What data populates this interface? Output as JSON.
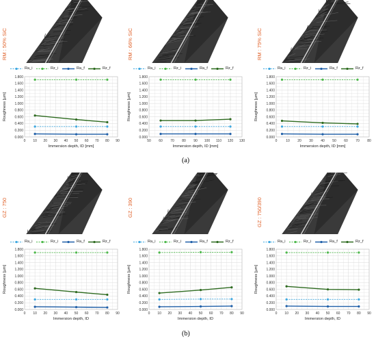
{
  "captions": {
    "a": "(a)",
    "b": "(b)"
  },
  "colors": {
    "ra": "#1f5fa8",
    "ra_i": "#3ea8e0",
    "rz": "#2d6a1f",
    "rz_i": "#4cb84a",
    "label": "#e0622a",
    "grid": "#d9d9d9"
  },
  "panels": [
    {
      "label": "RM : 50% SiC",
      "legend": [
        "Ra_i",
        "Rz_i",
        "Ra_f",
        "Rz_f"
      ],
      "chart_data": {
        "type": "line",
        "ylabel": "Roughness [µm]",
        "xlabel": "Immersion depth, ID [mm]",
        "xlim": [
          0,
          90
        ],
        "xticks": [
          0,
          10,
          20,
          30,
          40,
          50,
          60,
          70,
          80,
          90
        ],
        "ylim": [
          0,
          1.8
        ],
        "yticks": [
          "0.000",
          "0.200",
          "0.400",
          "0.600",
          "0.800",
          "1.000",
          "1.200",
          "1.400",
          "1.600",
          "1.800"
        ],
        "x": [
          10,
          50,
          80
        ],
        "series": [
          {
            "name": "Ra_i",
            "values": [
              0.31,
              0.31,
              0.31
            ]
          },
          {
            "name": "Rz_i",
            "values": [
              1.71,
              1.71,
              1.71
            ]
          },
          {
            "name": "Ra_f",
            "values": [
              0.09,
              0.08,
              0.08
            ]
          },
          {
            "name": "Rz_f",
            "values": [
              0.64,
              0.52,
              0.44
            ]
          }
        ]
      }
    },
    {
      "label": "RM : 66% SiC",
      "legend": [
        "Ra_i",
        "Rz_i",
        "Ra_f",
        "Rz_f"
      ],
      "chart_data": {
        "type": "line",
        "ylabel": "Roughness [µm]",
        "xlabel": "Immersion depth, ID [mm]",
        "xlim": [
          50,
          130
        ],
        "xticks": [
          50,
          60,
          70,
          80,
          90,
          100,
          110,
          120,
          130
        ],
        "ylim": [
          0,
          1.8
        ],
        "yticks": [
          "0.000",
          "0.200",
          "0.400",
          "0.600",
          "0.800",
          "1.000",
          "1.200",
          "1.400",
          "1.600",
          "1.800"
        ],
        "x": [
          60,
          90,
          120
        ],
        "series": [
          {
            "name": "Ra_i",
            "values": [
              0.31,
              0.31,
              0.31
            ]
          },
          {
            "name": "Rz_i",
            "values": [
              1.71,
              1.71,
              1.71
            ]
          },
          {
            "name": "Ra_f",
            "values": [
              0.09,
              0.09,
              0.09
            ]
          },
          {
            "name": "Rz_f",
            "values": [
              0.49,
              0.49,
              0.53
            ]
          }
        ]
      }
    },
    {
      "label": "RM : 75% SiC",
      "legend": [
        "Ra_i",
        "Rz_i",
        "Ra_f",
        "Rz_f"
      ],
      "chart_data": {
        "type": "line",
        "ylabel": "Roughness [µm]",
        "xlabel": "Immersion depth, ID [mm]",
        "xlim": [
          0,
          80
        ],
        "xticks": [
          0,
          10,
          20,
          30,
          40,
          50,
          60,
          70,
          80
        ],
        "ylim": [
          0,
          1.8
        ],
        "yticks": [
          "0.000",
          "0.200",
          "0.400",
          "0.600",
          "0.800",
          "1.000",
          "1.200",
          "1.400",
          "1.600",
          "1.800"
        ],
        "x": [
          5,
          40,
          70
        ],
        "series": [
          {
            "name": "Ra_i",
            "values": [
              0.31,
              0.31,
              0.31
            ]
          },
          {
            "name": "Rz_i",
            "values": [
              1.71,
              1.71,
              1.71
            ]
          },
          {
            "name": "Ra_f",
            "values": [
              0.09,
              0.08,
              0.08
            ]
          },
          {
            "name": "Rz_f",
            "values": [
              0.48,
              0.42,
              0.39
            ]
          }
        ]
      }
    },
    {
      "label": "GZ : 750",
      "legend": [
        "Ra_i",
        "Rz_i",
        "Ra_f",
        "Rz_f"
      ],
      "chart_data": {
        "type": "line",
        "ylabel": "Roughness [µm]",
        "xlabel": "Immersion depth, ID",
        "xlim": [
          0,
          90
        ],
        "xticks": [
          0,
          10,
          20,
          30,
          40,
          50,
          60,
          70,
          80,
          90
        ],
        "ylim": [
          0,
          1.8
        ],
        "yticks": [
          "0.000",
          "0.200",
          "0.400",
          "0.600",
          "0.800",
          "1.000",
          "1.200",
          "1.400",
          "1.600",
          "1.800"
        ],
        "x": [
          10,
          50,
          80
        ],
        "series": [
          {
            "name": "Ra_i",
            "values": [
              0.3,
              0.3,
              0.3
            ]
          },
          {
            "name": "Rz_i",
            "values": [
              1.7,
              1.7,
              1.7
            ]
          },
          {
            "name": "Ra_f",
            "values": [
              0.08,
              0.07,
              0.06
            ]
          },
          {
            "name": "Rz_f",
            "values": [
              0.63,
              0.52,
              0.44
            ]
          }
        ]
      }
    },
    {
      "label": "GZ : 390",
      "legend": [
        "Ra_i",
        "Rz_i",
        "Ra_f",
        "Rz_f"
      ],
      "chart_data": {
        "type": "line",
        "ylabel": "Roughness [µm]",
        "xlabel": "Immersion depth, ID",
        "xlim": [
          0,
          90
        ],
        "xticks": [
          0,
          10,
          20,
          30,
          40,
          50,
          60,
          70,
          80,
          90
        ],
        "ylim": [
          0,
          1.8
        ],
        "yticks": [
          "0.000",
          "0.200",
          "0.400",
          "0.600",
          "0.800",
          "1.000",
          "1.200",
          "1.400",
          "1.600",
          "1.800"
        ],
        "x": [
          10,
          50,
          80
        ],
        "series": [
          {
            "name": "Ra_i",
            "values": [
              0.3,
              0.31,
              0.31
            ]
          },
          {
            "name": "Rz_i",
            "values": [
              1.7,
              1.71,
              1.71
            ]
          },
          {
            "name": "Ra_f",
            "values": [
              0.08,
              0.09,
              0.1
            ]
          },
          {
            "name": "Rz_f",
            "values": [
              0.49,
              0.58,
              0.66
            ]
          }
        ]
      }
    },
    {
      "label": "GZ : 750/390",
      "legend": [
        "Ra_i",
        "Rz_i",
        "Ra_f",
        "Rz_f"
      ],
      "chart_data": {
        "type": "line",
        "ylabel": "Roughness [µm]",
        "xlabel": "Immersion depth, ID",
        "xlim": [
          0,
          90
        ],
        "xticks": [
          0,
          10,
          20,
          30,
          40,
          50,
          60,
          70,
          80,
          90
        ],
        "ylim": [
          0,
          1.8
        ],
        "yticks": [
          "0.000",
          "0.200",
          "0.400",
          "0.600",
          "0.800",
          "1.000",
          "1.200",
          "1.400",
          "1.600",
          "1.800"
        ],
        "x": [
          10,
          50,
          80
        ],
        "series": [
          {
            "name": "Ra_i",
            "values": [
              0.3,
              0.3,
              0.3
            ]
          },
          {
            "name": "Rz_i",
            "values": [
              1.7,
              1.7,
              1.7
            ]
          },
          {
            "name": "Ra_f",
            "values": [
              0.1,
              0.09,
              0.09
            ]
          },
          {
            "name": "Rz_f",
            "values": [
              0.69,
              0.6,
              0.59
            ]
          }
        ]
      }
    }
  ]
}
